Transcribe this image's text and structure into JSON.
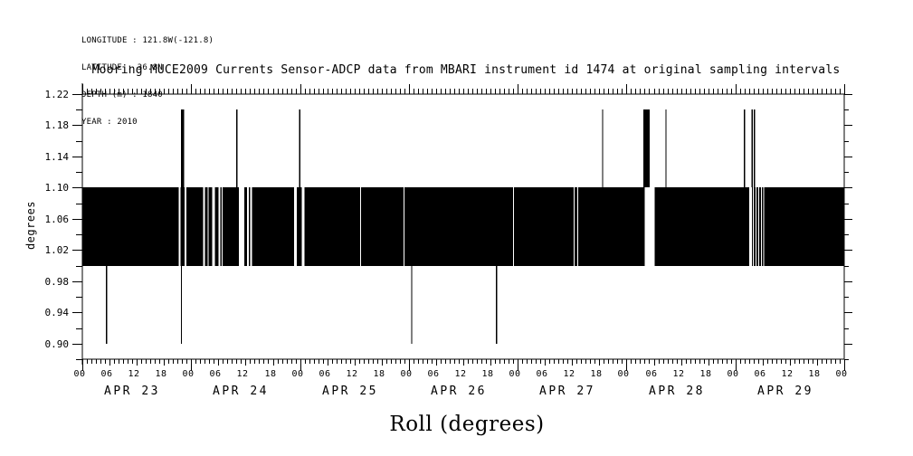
{
  "header": {
    "meta_lines": [
      "LONGITUDE : 121.8W(-121.8)",
      "LATITUDE : 36.8N",
      "DEPTH (m) : 1840",
      "YEAR : 2010"
    ]
  },
  "colors": {
    "foreground": "#000000",
    "background": "#ffffff"
  },
  "chart_data": {
    "type": "line",
    "title": "Mooring MUCE2009 Currents Sensor-ADCP data from MBARI instrument id 1474 at original sampling intervals",
    "ylabel": "degrees",
    "xlabel": "Roll (degrees)",
    "grid": false,
    "ylim": [
      0.88,
      1.22
    ],
    "ytick_major": [
      0.9,
      0.94,
      0.98,
      1.02,
      1.06,
      1.1,
      1.14,
      1.18,
      1.22
    ],
    "ytick_minor_step": 0.02,
    "day_labels": [
      "APR 23",
      "APR 24",
      "APR 25",
      "APR 26",
      "APR 27",
      "APR 28",
      "APR 29"
    ],
    "hour_tick_labels": [
      "00",
      "06",
      "12",
      "18"
    ],
    "closing_hour_label": "00",
    "minor_tick_interval_hours": 1,
    "band": {
      "value_low": 1.0,
      "value_high": 1.1,
      "note": "roll samples oscillate densely between 1.00 and 1.10 degrees, rendered solid black"
    },
    "gaps": [
      {
        "t": 0.892,
        "w": 0.014
      },
      {
        "t": 0.949,
        "w": 0.015
      },
      {
        "t": 1.117,
        "w": 0.017
      },
      {
        "t": 1.154,
        "w": 0.01
      },
      {
        "t": 1.205,
        "w": 0.025
      },
      {
        "t": 1.259,
        "w": 0.014
      },
      {
        "t": 1.283,
        "w": 0.011
      },
      {
        "t": 1.463,
        "w": 0.047
      },
      {
        "t": 1.523,
        "w": 0.014
      },
      {
        "t": 1.55,
        "w": 0.014
      },
      {
        "t": 1.958,
        "w": 0.021
      },
      {
        "t": 2.029,
        "w": 0.025
      },
      {
        "t": 2.555,
        "w": 0.011
      },
      {
        "t": 2.957,
        "w": 0.011
      },
      {
        "t": 3.963,
        "w": 0.011
      },
      {
        "t": 4.517,
        "w": 0.011
      },
      {
        "t": 4.55,
        "w": 0.011
      },
      {
        "t": 5.213,
        "w": 0.088
      },
      {
        "t": 6.14,
        "w": 0.021
      },
      {
        "t": 6.165,
        "w": 0.01
      },
      {
        "t": 6.19,
        "w": 0.01
      },
      {
        "t": 6.213,
        "w": 0.01
      },
      {
        "t": 6.238,
        "w": 0.01
      },
      {
        "t": 6.26,
        "w": 0.01
      }
    ],
    "spikes_high": {
      "value": 1.2,
      "events": [
        {
          "t": 0.92,
          "w": 0.03
        },
        {
          "t": 1.419,
          "w": 0.008
        },
        {
          "t": 1.997,
          "w": 0.008
        },
        {
          "t": 4.78,
          "w": 0.008
        },
        {
          "t": 5.184,
          "w": 0.058
        },
        {
          "t": 5.362,
          "w": 0.008
        },
        {
          "t": 6.085,
          "w": 0.008
        },
        {
          "t": 6.154,
          "w": 0.008
        },
        {
          "t": 6.175,
          "w": 0.008
        }
      ]
    },
    "spikes_low": {
      "value": 0.9,
      "events": [
        {
          "t": 0.224
        },
        {
          "t": 0.91
        },
        {
          "t": 3.026
        },
        {
          "t": 3.807
        }
      ]
    }
  }
}
